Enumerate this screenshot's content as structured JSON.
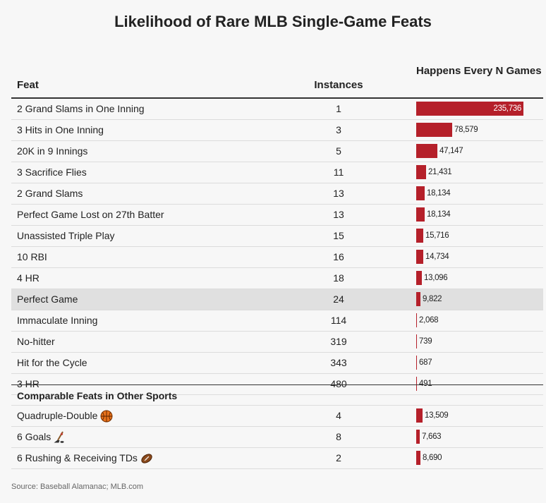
{
  "chart_data": {
    "type": "table",
    "title": "Likelihood of Rare MLB Single-Game Feats",
    "columns": [
      "Feat",
      "Instances",
      "Happens Every N Games"
    ],
    "rows": [
      {
        "feat": "2 Grand Slams in One Inning",
        "instances": "1",
        "every_n_games": 235736,
        "label": "235,736",
        "highlight": false
      },
      {
        "feat": "3 Hits in One Inning",
        "instances": "3",
        "every_n_games": 78579,
        "label": "78,579",
        "highlight": false
      },
      {
        "feat": "20K in 9 Innings",
        "instances": "5",
        "every_n_games": 47147,
        "label": "47,147",
        "highlight": false
      },
      {
        "feat": "3 Sacrifice Flies",
        "instances": "11",
        "every_n_games": 21431,
        "label": "21,431",
        "highlight": false
      },
      {
        "feat": "2 Grand Slams",
        "instances": "13",
        "every_n_games": 18134,
        "label": "18,134",
        "highlight": false
      },
      {
        "feat": "Perfect Game Lost on 27th Batter",
        "instances": "13",
        "every_n_games": 18134,
        "label": "18,134",
        "highlight": false
      },
      {
        "feat": "Unassisted Triple Play",
        "instances": "15",
        "every_n_games": 15716,
        "label": "15,716",
        "highlight": false
      },
      {
        "feat": "10 RBI",
        "instances": "16",
        "every_n_games": 14734,
        "label": "14,734",
        "highlight": false
      },
      {
        "feat": "4 HR",
        "instances": "18",
        "every_n_games": 13096,
        "label": "13,096",
        "highlight": false
      },
      {
        "feat": "Perfect Game",
        "instances": "24",
        "every_n_games": 9822,
        "label": "9,822",
        "highlight": true
      },
      {
        "feat": "Immaculate Inning",
        "instances": "114",
        "every_n_games": 2068,
        "label": "2,068",
        "highlight": false
      },
      {
        "feat": "No-hitter",
        "instances": "319",
        "every_n_games": 739,
        "label": "739",
        "highlight": false
      },
      {
        "feat": "Hit for the Cycle",
        "instances": "343",
        "every_n_games": 687,
        "label": "687",
        "highlight": false
      },
      {
        "feat": "3 HR",
        "instances": "480",
        "every_n_games": 491,
        "label": "491",
        "highlight": false
      }
    ],
    "subheading": "Comparable Feats in Other Sports",
    "other_rows": [
      {
        "feat": "Quadruple-Double",
        "icon": "basketball-icon",
        "instances": "4",
        "every_n_games": 13509,
        "label": "13,509"
      },
      {
        "feat": "6 Goals",
        "icon": "hockey-stick-icon",
        "instances": "8",
        "every_n_games": 7663,
        "label": "7,663"
      },
      {
        "feat": "6 Rushing & Receiving TDs",
        "icon": "football-icon",
        "instances": "2",
        "every_n_games": 8690,
        "label": "8,690"
      }
    ],
    "max_value": 235736
  },
  "source": "Source: Baseball Alamanac; MLB.com",
  "colors": {
    "bar": "#b5202a",
    "highlight_row": "#e0e0e0"
  }
}
